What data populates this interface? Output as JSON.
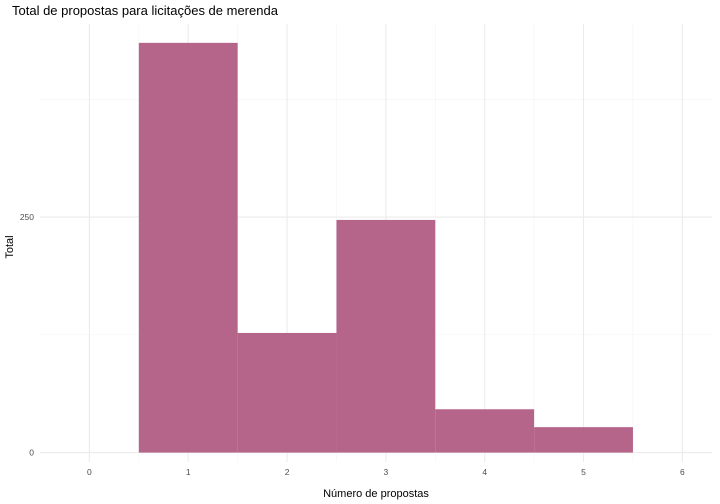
{
  "chart_data": {
    "type": "bar",
    "title": "Total de propostas para licitações de merenda",
    "xlabel": "Número de propostas",
    "ylabel": "Total",
    "x": [
      1,
      2,
      3,
      4,
      5
    ],
    "values": [
      435,
      127,
      247,
      46,
      27
    ],
    "bar_width": 1,
    "xlim": [
      -0.5,
      6.3
    ],
    "ylim": [
      -10,
      455
    ],
    "x_ticks": [
      0,
      1,
      2,
      3,
      4,
      5,
      6
    ],
    "x_tick_labels": [
      "0",
      "1",
      "2",
      "3",
      "4",
      "5",
      "6"
    ],
    "y_ticks": [
      0,
      250
    ],
    "y_tick_labels": [
      "0",
      "250"
    ],
    "y_minor_ticks": [
      125,
      375
    ],
    "x_minor_ticks": [
      0.5,
      1.5,
      2.5,
      3.5,
      4.5,
      5.5
    ],
    "grid": true,
    "legend": "none",
    "bar_color": "#b5648a",
    "grid_major_color": "#ebebeb",
    "grid_minor_color": "#f4f4f4"
  }
}
